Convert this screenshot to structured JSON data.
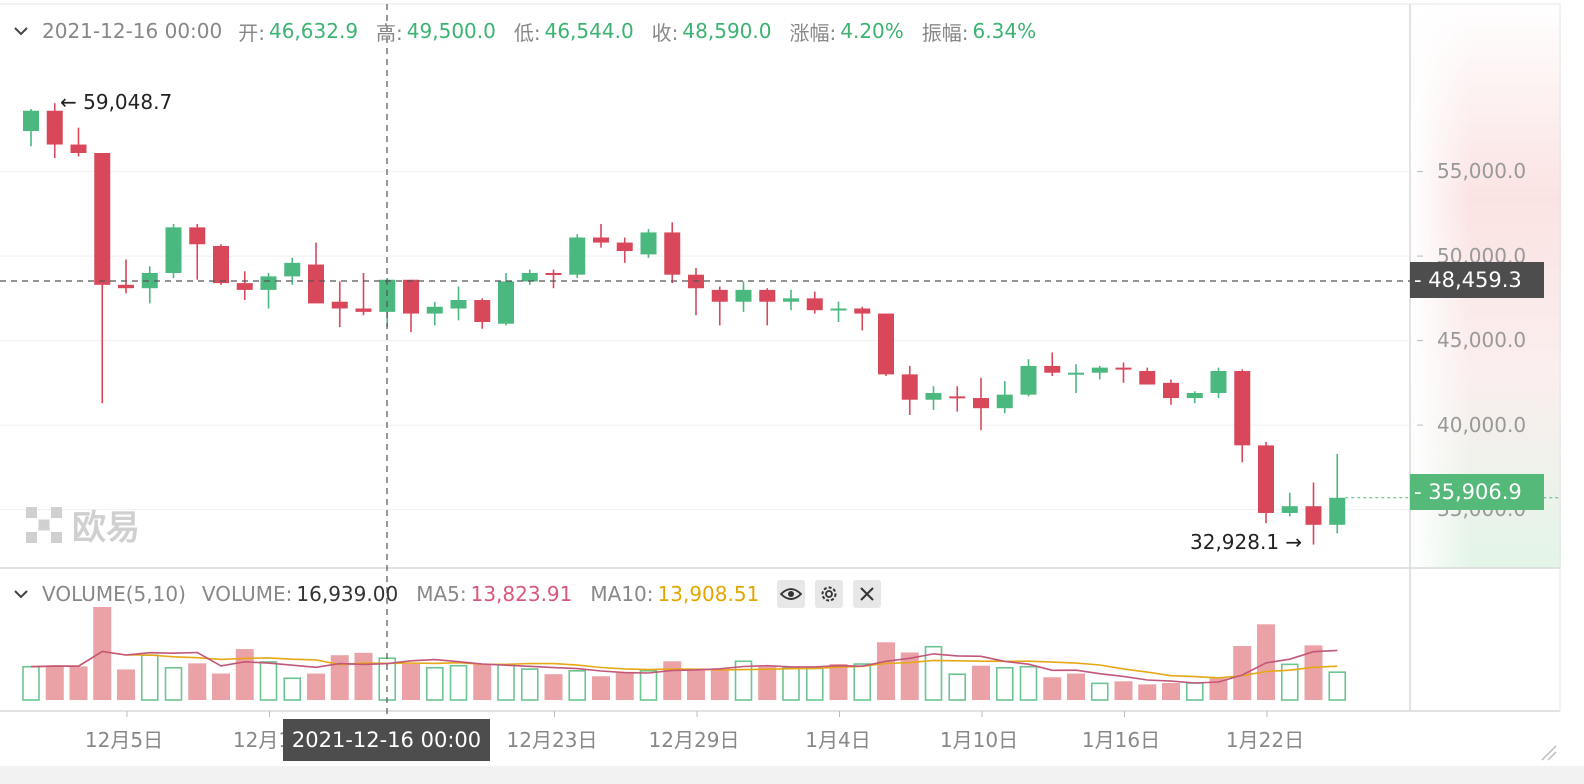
{
  "header": {
    "date": "2021-12-16 00:00",
    "open_label": "开:",
    "open": "46,632.9",
    "high_label": "高:",
    "high": "49,500.0",
    "low_label": "低:",
    "low": "46,544.0",
    "close_label": "收:",
    "close": "48,590.0",
    "change_label": "涨幅:",
    "change": "4.20%",
    "amplitude_label": "振幅:",
    "amplitude": "6.34%"
  },
  "volume_header": {
    "title": "VOLUME(5,10)",
    "volume_label": "VOLUME:",
    "volume": "16,939.00",
    "ma5_label": "MA5:",
    "ma5": "13,823.91",
    "ma10_label": "MA10:",
    "ma10": "13,908.51"
  },
  "price_tags": {
    "crosshair": "- 48,459.3",
    "last": "- 35,906.9"
  },
  "extremes": {
    "high": "← 59,048.7",
    "low": "32,928.1 →"
  },
  "crosshair_date": "2021-12-16 00:00",
  "watermark": "欧易",
  "colors": {
    "up": "#4bb87f",
    "down": "#d9485a",
    "ma5": "#c2577a",
    "ma10": "#e6a817"
  },
  "chart_data": {
    "type": "candlestick",
    "y_ticks": [
      "55,000.0",
      "50,000.0",
      "45,000.0",
      "40,000.0",
      "35,000.0"
    ],
    "y_tick_values": [
      55000,
      50000,
      45000,
      40000,
      35000
    ],
    "x_tick_labels": [
      "12月5日",
      "12月1",
      "12月23日",
      "12月29日",
      "1月4日",
      "1月10日",
      "1月16日",
      "1月22日"
    ],
    "x_tick_index": [
      4,
      10,
      22,
      28,
      34,
      40,
      46,
      52
    ],
    "candles": [
      [
        57400,
        58700,
        56500,
        58600
      ],
      [
        58600,
        59048.7,
        55800,
        56600
      ],
      [
        56600,
        57600,
        55900,
        56100
      ],
      [
        56100,
        56100,
        41300,
        48300
      ],
      [
        48300,
        49800,
        47800,
        48100
      ],
      [
        48100,
        49400,
        47200,
        49000
      ],
      [
        49000,
        51900,
        48700,
        51700
      ],
      [
        51700,
        51900,
        48600,
        50700
      ],
      [
        50600,
        50700,
        48300,
        48400
      ],
      [
        48400,
        49100,
        47400,
        48000
      ],
      [
        48000,
        49000,
        46900,
        48800
      ],
      [
        48800,
        49900,
        48300,
        49600
      ],
      [
        49500,
        50800,
        47300,
        47200
      ],
      [
        47300,
        48500,
        45800,
        46900
      ],
      [
        46900,
        49000,
        46500,
        46700
      ],
      [
        46700,
        48700,
        45800,
        48600
      ],
      [
        48600,
        48600,
        45500,
        46600
      ],
      [
        46600,
        47300,
        45900,
        47000
      ],
      [
        46900,
        48200,
        46200,
        47400
      ],
      [
        47400,
        47500,
        45700,
        46100
      ],
      [
        46000,
        49000,
        45900,
        48500
      ],
      [
        48500,
        49200,
        48300,
        49000
      ],
      [
        49000,
        49200,
        48100,
        48900
      ],
      [
        48900,
        51300,
        48700,
        51100
      ],
      [
        51100,
        51900,
        50500,
        50800
      ],
      [
        50800,
        51100,
        49600,
        50300
      ],
      [
        50100,
        51600,
        49900,
        51400
      ],
      [
        51400,
        52000,
        48400,
        48900
      ],
      [
        48900,
        49300,
        46500,
        48100
      ],
      [
        48000,
        48200,
        45900,
        47300
      ],
      [
        47300,
        48500,
        46700,
        48000
      ],
      [
        48000,
        48100,
        45900,
        47300
      ],
      [
        47300,
        48000,
        46800,
        47500
      ],
      [
        47500,
        47900,
        46600,
        46800
      ],
      [
        46800,
        47300,
        46100,
        46900
      ],
      [
        46900,
        47000,
        45600,
        46600
      ],
      [
        46600,
        46600,
        42900,
        43000
      ],
      [
        43000,
        43500,
        40600,
        41500
      ],
      [
        41500,
        42300,
        40900,
        41900
      ],
      [
        41700,
        42300,
        40800,
        41600
      ],
      [
        41600,
        42800,
        39700,
        41000
      ],
      [
        41000,
        42600,
        40700,
        41800
      ],
      [
        41800,
        43900,
        41700,
        43500
      ],
      [
        43500,
        44300,
        42900,
        43100
      ],
      [
        43100,
        43600,
        41900,
        43100
      ],
      [
        43100,
        43500,
        42700,
        43400
      ],
      [
        43400,
        43700,
        42500,
        43300
      ],
      [
        43200,
        43400,
        42400,
        42400
      ],
      [
        42500,
        42700,
        41200,
        41600
      ],
      [
        41600,
        42000,
        41300,
        41900
      ],
      [
        41900,
        43400,
        41600,
        43200
      ],
      [
        43200,
        43300,
        37800,
        38800
      ],
      [
        38800,
        39000,
        34200,
        34800
      ],
      [
        34800,
        36000,
        34600,
        35200
      ],
      [
        35200,
        36600,
        32928.1,
        34100
      ],
      [
        34100,
        38300,
        33600,
        35700
      ]
    ],
    "volumes": [
      [
        9800,
        "up"
      ],
      [
        10200,
        "down"
      ],
      [
        9900,
        "down"
      ],
      [
        27400,
        "down"
      ],
      [
        9000,
        "down"
      ],
      [
        13200,
        "up"
      ],
      [
        9500,
        "up"
      ],
      [
        10800,
        "down"
      ],
      [
        7800,
        "down"
      ],
      [
        15000,
        "down"
      ],
      [
        11200,
        "up"
      ],
      [
        6400,
        "up"
      ],
      [
        7800,
        "down"
      ],
      [
        13200,
        "down"
      ],
      [
        13900,
        "down"
      ],
      [
        12300,
        "up"
      ],
      [
        10600,
        "down"
      ],
      [
        9500,
        "up"
      ],
      [
        10100,
        "up"
      ],
      [
        10600,
        "down"
      ],
      [
        10400,
        "up"
      ],
      [
        9100,
        "up"
      ],
      [
        7600,
        "down"
      ],
      [
        8600,
        "up"
      ],
      [
        7000,
        "down"
      ],
      [
        8000,
        "down"
      ],
      [
        8600,
        "up"
      ],
      [
        11400,
        "down"
      ],
      [
        9300,
        "down"
      ],
      [
        8700,
        "down"
      ],
      [
        11400,
        "up"
      ],
      [
        9800,
        "down"
      ],
      [
        9500,
        "up"
      ],
      [
        9300,
        "up"
      ],
      [
        10600,
        "down"
      ],
      [
        10600,
        "up"
      ],
      [
        17000,
        "down"
      ],
      [
        14000,
        "down"
      ],
      [
        15700,
        "up"
      ],
      [
        7600,
        "up"
      ],
      [
        10100,
        "down"
      ],
      [
        9500,
        "up"
      ],
      [
        9800,
        "up"
      ],
      [
        6700,
        "down"
      ],
      [
        7800,
        "down"
      ],
      [
        4900,
        "up"
      ],
      [
        5500,
        "down"
      ],
      [
        4600,
        "down"
      ],
      [
        5000,
        "down"
      ],
      [
        5000,
        "up"
      ],
      [
        6400,
        "down"
      ],
      [
        15900,
        "down"
      ],
      [
        22300,
        "down"
      ],
      [
        10500,
        "up"
      ],
      [
        16100,
        "down"
      ],
      [
        8200,
        "up"
      ]
    ]
  }
}
